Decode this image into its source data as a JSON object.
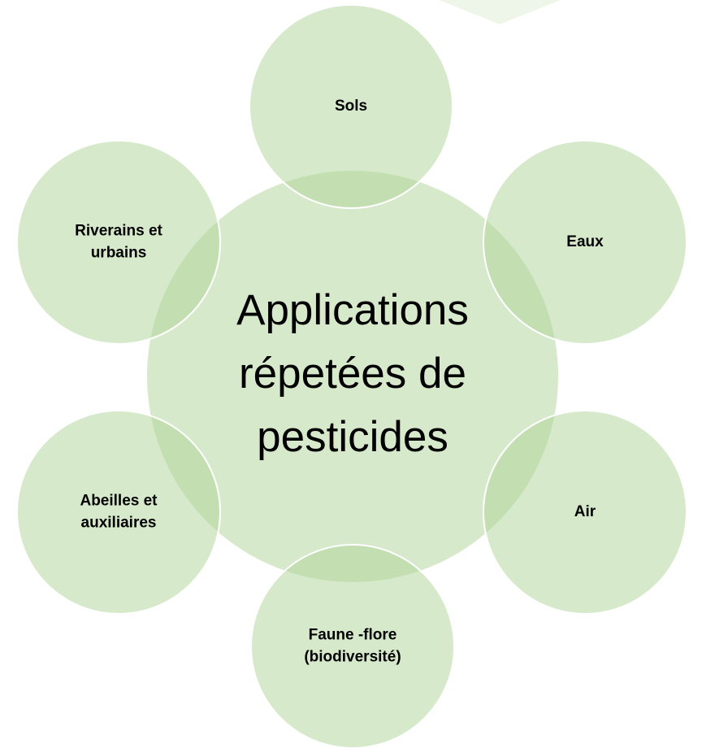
{
  "center": {
    "lines": [
      "Applications",
      "répetées de",
      "pesticides"
    ]
  },
  "nodes": [
    {
      "lines": [
        "Sols"
      ]
    },
    {
      "lines": [
        "Eaux"
      ]
    },
    {
      "lines": [
        "Air"
      ]
    },
    {
      "lines": [
        "Faune -flore",
        "(biodiversité)"
      ]
    },
    {
      "lines": [
        "Abeilles et",
        "auxiliaires"
      ]
    },
    {
      "lines": [
        "Riverains et",
        "urbains"
      ]
    }
  ]
}
